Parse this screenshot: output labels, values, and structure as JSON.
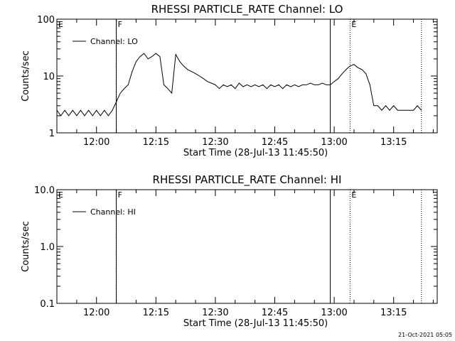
{
  "footer": {
    "timestamp": "21-Oct-2021 05:05"
  },
  "chart_data": [
    {
      "type": "line",
      "title": "RHESSI PARTICLE_RATE Channel: LO",
      "xlabel": "Start Time (28-Jul-13 11:45:50)",
      "ylabel": "Counts/sec",
      "yscale": "log",
      "ylim": [
        1,
        100
      ],
      "ytick_labels": [
        "1",
        "10",
        "100"
      ],
      "xlim": [
        "11:50",
        "13:26"
      ],
      "xtick_labels": [
        "12:00",
        "12:15",
        "12:30",
        "12:45",
        "13:00",
        "13:15"
      ],
      "legend": {
        "placement": "top-left",
        "entries": [
          "Channel: LO"
        ]
      },
      "flag_lines": [
        {
          "time": "12:05",
          "letter": "F",
          "style": "dotted"
        },
        {
          "time": "12:05",
          "letter": "",
          "style": "solid"
        },
        {
          "time": "12:59",
          "letter": "",
          "style": "solid"
        },
        {
          "time": "13:04",
          "letter": "E",
          "style": "dotted"
        },
        {
          "time": "13:22",
          "letter": "",
          "style": "dotted"
        },
        {
          "time": "11:50",
          "letter": "E",
          "style": "none"
        }
      ],
      "series": [
        {
          "name": "Channel: LO",
          "x": [
            "11:50",
            "11:51",
            "11:52",
            "11:53",
            "11:54",
            "11:55",
            "11:56",
            "11:57",
            "11:58",
            "11:59",
            "12:00",
            "12:01",
            "12:02",
            "12:03",
            "12:04",
            "12:05",
            "12:06",
            "12:07",
            "12:08",
            "12:09",
            "12:10",
            "12:11",
            "12:12",
            "12:13",
            "12:14",
            "12:15",
            "12:16",
            "12:17",
            "12:18",
            "12:19",
            "12:20",
            "12:21",
            "12:22",
            "12:23",
            "12:24",
            "12:25",
            "12:26",
            "12:27",
            "12:28",
            "12:29",
            "12:30",
            "12:31",
            "12:32",
            "12:33",
            "12:34",
            "12:35",
            "12:36",
            "12:37",
            "12:38",
            "12:39",
            "12:40",
            "12:41",
            "12:42",
            "12:43",
            "12:44",
            "12:45",
            "12:46",
            "12:47",
            "12:48",
            "12:49",
            "12:50",
            "12:51",
            "12:52",
            "12:53",
            "12:54",
            "12:55",
            "12:56",
            "12:57",
            "12:58",
            "12:59",
            "13:00",
            "13:01",
            "13:02",
            "13:03",
            "13:04",
            "13:05",
            "13:06",
            "13:07",
            "13:08",
            "13:09",
            "13:10",
            "13:11",
            "13:12",
            "13:13",
            "13:14",
            "13:15",
            "13:16",
            "13:17",
            "13:18",
            "13:19",
            "13:20",
            "13:21",
            "13:22"
          ],
          "y": [
            2.5,
            2,
            2.5,
            2,
            2.5,
            2,
            2.5,
            2,
            2.5,
            2,
            2.5,
            2,
            2.5,
            2,
            2.5,
            3.5,
            5,
            6,
            7,
            12,
            18,
            22,
            25,
            20,
            22,
            25,
            22,
            7,
            6,
            5,
            24,
            18,
            15,
            13,
            12,
            11,
            10,
            9,
            8,
            7.5,
            7,
            6,
            7,
            6.5,
            7,
            6,
            7.5,
            6.5,
            7,
            6.5,
            7,
            6.5,
            7,
            6,
            7,
            6.5,
            7,
            6,
            7,
            6.5,
            7,
            6.5,
            7,
            7,
            7.5,
            7,
            7,
            7.5,
            7,
            7,
            8,
            9,
            11,
            13,
            15,
            16,
            14,
            13,
            11,
            7,
            3,
            3,
            2.5,
            3,
            2.5,
            3,
            2.5,
            2.5,
            2.5,
            2.5,
            2.5,
            3,
            2.5
          ]
        }
      ]
    },
    {
      "type": "line",
      "title": "RHESSI PARTICLE_RATE Channel: HI",
      "xlabel": "Start Time (28-Jul-13 11:45:50)",
      "ylabel": "Counts/sec",
      "yscale": "log",
      "ylim": [
        0.1,
        10
      ],
      "ytick_labels": [
        "0.1",
        "1.0",
        "10.0"
      ],
      "xlim": [
        "11:50",
        "13:26"
      ],
      "xtick_labels": [
        "12:00",
        "12:15",
        "12:30",
        "12:45",
        "13:00",
        "13:15"
      ],
      "legend": {
        "placement": "top-left",
        "entries": [
          "Channel: HI"
        ]
      },
      "flag_lines": [
        {
          "time": "12:05",
          "letter": "F",
          "style": "dotted"
        },
        {
          "time": "12:05",
          "letter": "",
          "style": "solid"
        },
        {
          "time": "12:59",
          "letter": "",
          "style": "solid"
        },
        {
          "time": "13:04",
          "letter": "E",
          "style": "dotted"
        },
        {
          "time": "13:22",
          "letter": "",
          "style": "dotted"
        },
        {
          "time": "11:50",
          "letter": "E",
          "style": "none"
        }
      ],
      "series": [
        {
          "name": "Channel: HI",
          "x": [],
          "y": []
        }
      ]
    }
  ]
}
